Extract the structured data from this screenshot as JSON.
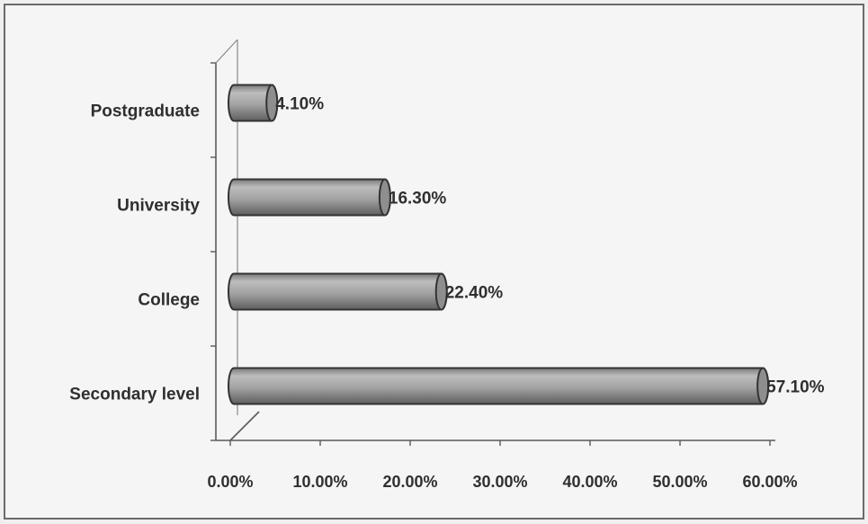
{
  "chart_data": {
    "type": "bar",
    "orientation": "horizontal",
    "title": "",
    "xlabel": "",
    "ylabel": "",
    "categories": [
      "Postgraduate",
      "University",
      "College",
      "Secondary level"
    ],
    "values": [
      4.1,
      16.3,
      22.4,
      57.1
    ],
    "data_labels": [
      "4.10%",
      "16.30%",
      "22.40%",
      "57.10%"
    ],
    "xlim": [
      0,
      60
    ],
    "x_ticks": [
      0,
      10,
      20,
      30,
      40,
      50,
      60
    ],
    "x_tick_labels": [
      "0.00%",
      "10.00%",
      "20.00%",
      "30.00%",
      "40.00%",
      "50.00%",
      "60.00%"
    ],
    "grid": false,
    "legend": "none"
  },
  "colors": {
    "bar_outline": "#333333",
    "bar_cap": "#8e8e8e",
    "text": "#2f2f2f",
    "frame": "#6b6b6b",
    "plot_background": "#f5f5f5"
  }
}
